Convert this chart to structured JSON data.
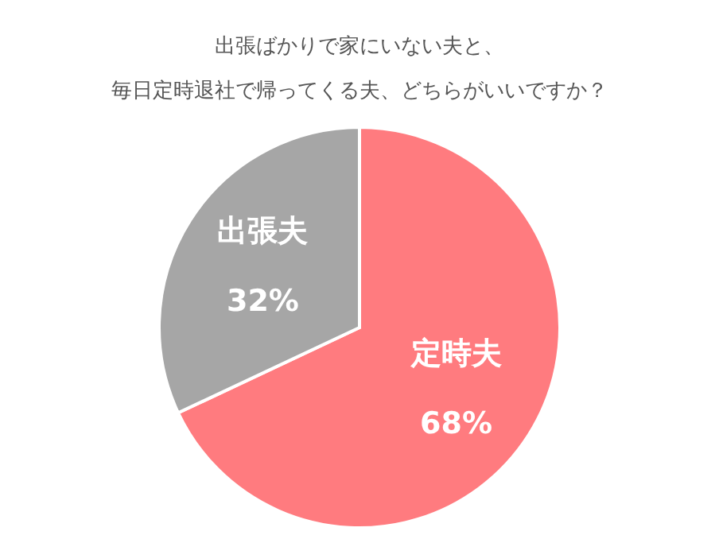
{
  "chart_data": {
    "type": "pie",
    "title": [
      "出張ばかりで家にいない夫と、",
      "毎日定時退社で帰ってくる夫、どちらがいいですか？"
    ],
    "categories": [
      "定時夫",
      "出張夫"
    ],
    "values": [
      68,
      32
    ],
    "value_labels": [
      "68%",
      "32%"
    ],
    "colors": [
      "#ff7b7f",
      "#a6a6a6"
    ],
    "legend": false
  }
}
